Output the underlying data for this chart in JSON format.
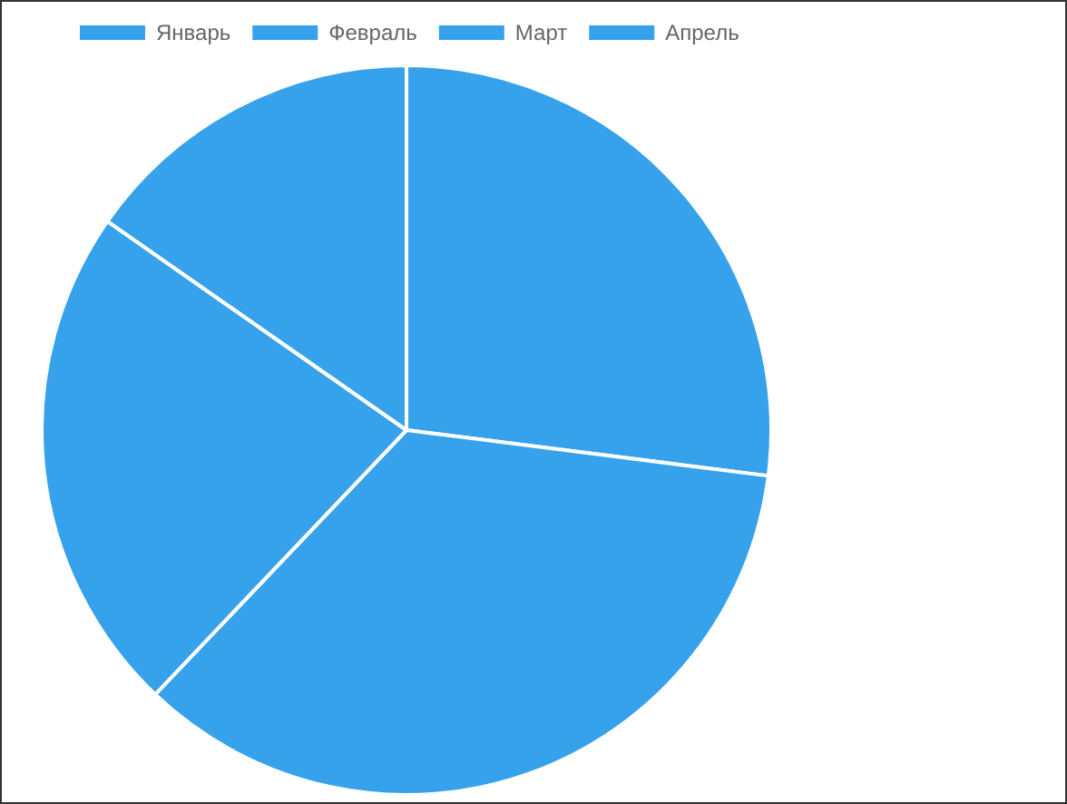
{
  "chart_data": {
    "type": "pie",
    "categories": [
      "Январь",
      "Февраль",
      "Март",
      "Апрель"
    ],
    "values": [
      27,
      35.1,
      22.6,
      15.3
    ],
    "colors": [
      "#36a2eb",
      "#36a2eb",
      "#36a2eb",
      "#36a2eb"
    ],
    "legend": "top left"
  }
}
